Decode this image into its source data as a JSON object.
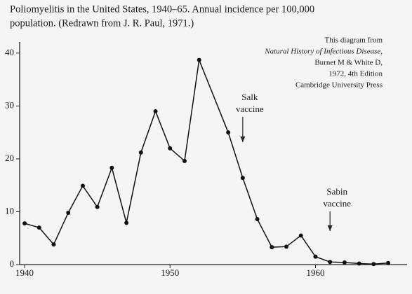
{
  "chart_data": {
    "type": "line",
    "title": [
      "Poliomyelitis in the United States, 1940–65. Annual incidence per 100,000",
      "population. (Redrawn from J. R. Paul, 1971.)"
    ],
    "source_note": [
      "This diagram from",
      "Natural History of Infectious Disease,",
      "Burnet M & White D,",
      "1972, 4th Edition",
      "Cambridge University Press"
    ],
    "x": [
      1940,
      1941,
      1942,
      1943,
      1944,
      1945,
      1946,
      1947,
      1948,
      1949,
      1950,
      1951,
      1952,
      1954,
      1955,
      1956,
      1957,
      1958,
      1959,
      1960,
      1961,
      1962,
      1963,
      1964,
      1965
    ],
    "values": [
      7.8,
      7.0,
      3.8,
      9.8,
      14.9,
      10.9,
      18.3,
      7.9,
      21.2,
      29.0,
      22.0,
      19.6,
      38.7,
      25.0,
      16.4,
      8.6,
      3.3,
      3.4,
      5.5,
      1.5,
      0.5,
      0.4,
      0.2,
      0.1,
      0.3
    ],
    "color": "#111111",
    "xlim": [
      1939.66,
      1966.3
    ],
    "xticks": [
      1940,
      1950,
      1960
    ],
    "ylim": [
      0,
      42.1
    ],
    "yticks": [
      0,
      10,
      20,
      30,
      40
    ],
    "annotations": [
      {
        "text": [
          "Salk",
          "vaccine"
        ],
        "x": 1955
      },
      {
        "text": [
          "Sabin",
          "vaccine"
        ],
        "x": 1961
      }
    ]
  }
}
